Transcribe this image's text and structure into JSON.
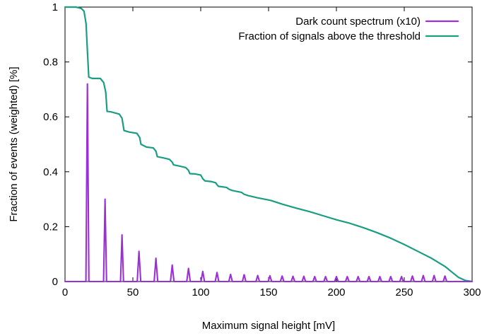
{
  "chart_data": {
    "type": "line",
    "xlabel": "Maximum signal height [mV]",
    "ylabel": "Fraction of events (weighted) [%]",
    "xlim": [
      0,
      300
    ],
    "ylim": [
      0,
      1
    ],
    "xticks": [
      "0",
      "50",
      "100",
      "150",
      "200",
      "250",
      "300"
    ],
    "yticks": [
      "0",
      "0.2",
      "0.4",
      "0.6",
      "0.8",
      "1"
    ],
    "grid": false,
    "legend_position": "top-right",
    "series": [
      {
        "name": "Dark count spectrum (x10)",
        "color": "#9b30d6",
        "style": "peaks",
        "baseline_after_280": 0.0,
        "x": [
          16.5,
          29.5,
          42,
          54.5,
          67,
          79,
          91,
          101.5,
          112,
          122,
          132,
          142,
          151,
          160,
          168,
          176,
          184,
          192,
          200,
          208,
          216,
          224,
          232,
          240,
          248,
          256,
          264,
          272,
          280
        ],
        "y": [
          0.72,
          0.3,
          0.17,
          0.11,
          0.085,
          0.06,
          0.048,
          0.037,
          0.033,
          0.026,
          0.025,
          0.022,
          0.021,
          0.02,
          0.019,
          0.019,
          0.018,
          0.018,
          0.018,
          0.018,
          0.018,
          0.018,
          0.018,
          0.018,
          0.018,
          0.02,
          0.022,
          0.022,
          0.02
        ]
      },
      {
        "name": "Fraction of signals above the threshold",
        "color": "#1a9e82",
        "style": "line",
        "x": [
          0,
          8,
          12,
          14,
          15.5,
          16.5,
          17.5,
          20,
          26,
          28.5,
          30,
          31,
          34,
          40,
          42,
          43.5,
          47,
          53,
          55,
          56,
          60,
          65,
          67,
          68,
          73,
          77,
          79,
          80,
          85,
          89,
          91,
          92,
          96,
          100,
          101.5,
          103,
          108,
          111,
          112,
          113,
          119,
          121,
          123,
          130,
          132,
          135,
          142,
          147,
          152,
          160,
          170,
          180,
          190,
          200,
          210,
          220,
          230,
          240,
          250,
          260,
          270,
          280,
          285,
          290,
          295,
          300
        ],
        "y": [
          1.0,
          1.0,
          0.995,
          0.985,
          0.94,
          0.84,
          0.745,
          0.74,
          0.74,
          0.725,
          0.69,
          0.62,
          0.618,
          0.61,
          0.595,
          0.55,
          0.545,
          0.54,
          0.525,
          0.5,
          0.49,
          0.487,
          0.475,
          0.455,
          0.45,
          0.445,
          0.435,
          0.425,
          0.42,
          0.415,
          0.405,
          0.393,
          0.392,
          0.388,
          0.375,
          0.367,
          0.364,
          0.36,
          0.353,
          0.347,
          0.343,
          0.336,
          0.332,
          0.325,
          0.318,
          0.313,
          0.305,
          0.3,
          0.295,
          0.282,
          0.268,
          0.255,
          0.24,
          0.225,
          0.212,
          0.196,
          0.178,
          0.158,
          0.135,
          0.11,
          0.085,
          0.055,
          0.035,
          0.015,
          0.004,
          0.0
        ]
      }
    ]
  }
}
